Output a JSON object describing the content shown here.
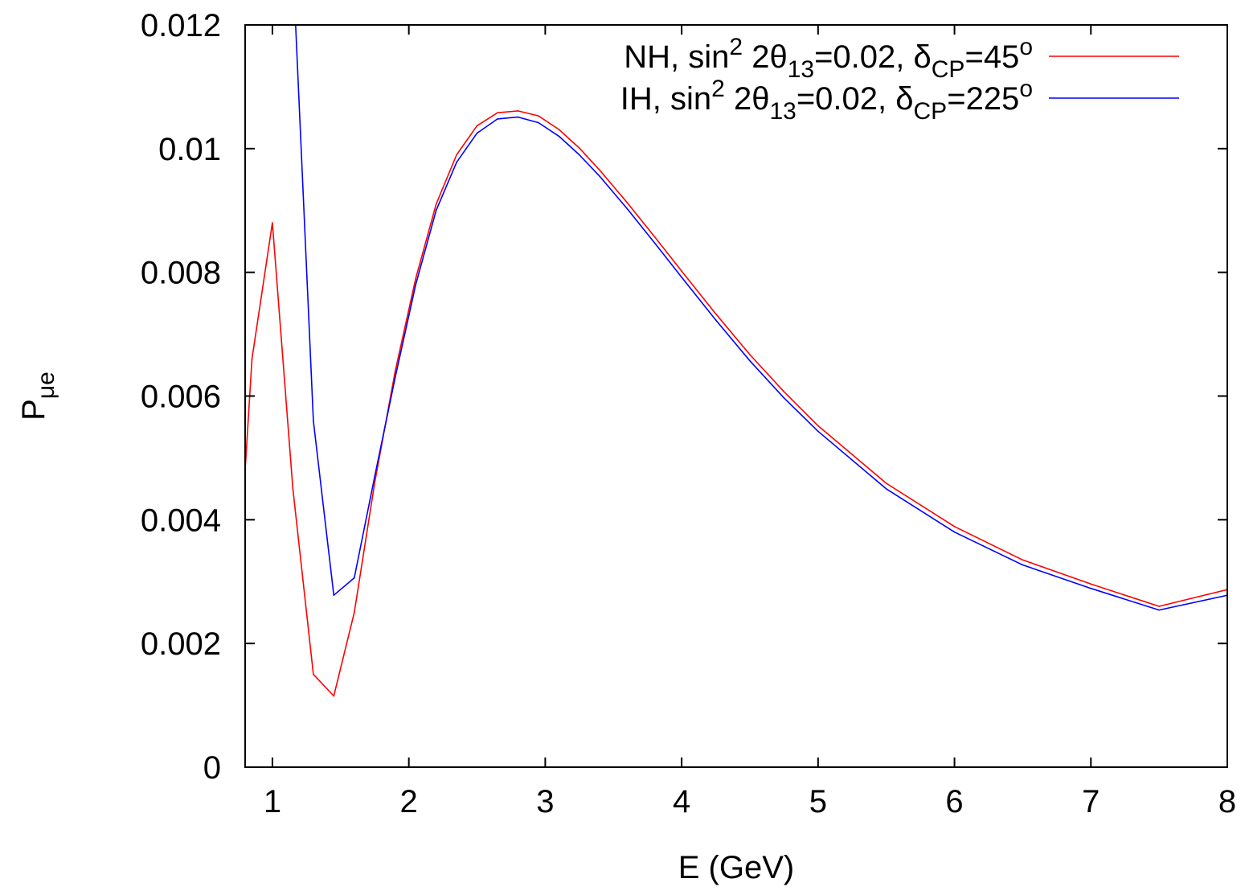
{
  "chart_data": {
    "type": "line",
    "title": "",
    "xlabel": "E (GeV)",
    "ylabel": {
      "main": "P",
      "sub": "μe"
    },
    "xlim": [
      0.8,
      8
    ],
    "ylim": [
      0,
      0.012
    ],
    "xticks": [
      1,
      2,
      3,
      4,
      5,
      6,
      7,
      8
    ],
    "xtick_labels": [
      "1",
      "2",
      "3",
      "4",
      "5",
      "6",
      "7",
      "8"
    ],
    "yticks": [
      0,
      0.002,
      0.004,
      0.006,
      0.008,
      0.01,
      0.012
    ],
    "ytick_labels": [
      "0",
      "0.002",
      "0.004",
      "0.006",
      "0.008",
      "0.01",
      "0.012"
    ],
    "grid": false,
    "legend_position": "top-right",
    "series": [
      {
        "name": "NH, sin² 2θ₁₃=0.02, δCP=45°",
        "legend_parts": {
          "a": "NH, sin",
          "sup1": "2",
          "b": " 2θ",
          "sub1": "13",
          "c": "=0.02, δ",
          "sub2": "CP",
          "d": "=45",
          "sup2": "o"
        },
        "color": "#ff0000",
        "x": [
          0.8,
          0.85,
          1.0,
          1.15,
          1.3,
          1.45,
          1.6,
          1.75,
          1.9,
          2.05,
          2.2,
          2.35,
          2.5,
          2.65,
          2.8,
          2.95,
          3.1,
          3.25,
          3.4,
          3.6,
          3.8,
          4.0,
          4.25,
          4.5,
          4.75,
          5.0,
          5.5,
          6.0,
          6.5,
          7.0,
          7.5,
          8.0
        ],
        "y": [
          0.0048,
          0.0066,
          0.0088,
          0.0045,
          0.0015,
          0.00115,
          0.0025,
          0.0046,
          0.0064,
          0.0079,
          0.0091,
          0.0099,
          0.01037,
          0.01058,
          0.01061,
          0.01053,
          0.01031,
          0.01001,
          0.00965,
          0.00913,
          0.00858,
          0.00802,
          0.00733,
          0.00667,
          0.00607,
          0.00552,
          0.00459,
          0.00389,
          0.00335,
          0.00296,
          0.0026,
          0.00287
        ]
      },
      {
        "name": "IH, sin² 2θ₁₃=0.02, δCP=225°",
        "legend_parts": {
          "a": "IH, sin",
          "sup1": "2",
          "b": " 2θ",
          "sub1": "13",
          "c": "=0.02, δ",
          "sub2": "CP",
          "d": "=225",
          "sup2": "o"
        },
        "color": "#0000ff",
        "x": [
          1.17,
          1.3,
          1.45,
          1.6,
          1.75,
          1.9,
          2.05,
          2.2,
          2.35,
          2.5,
          2.65,
          2.8,
          2.95,
          3.1,
          3.25,
          3.4,
          3.6,
          3.8,
          4.0,
          4.25,
          4.5,
          4.75,
          5.0,
          5.5,
          6.0,
          6.5,
          7.0,
          7.5,
          8.0
        ],
        "y": [
          0.012,
          0.0056,
          0.00278,
          0.00306,
          0.0047,
          0.0063,
          0.0078,
          0.009,
          0.00978,
          0.01025,
          0.01048,
          0.01051,
          0.01042,
          0.0102,
          0.0099,
          0.00955,
          0.00903,
          0.00848,
          0.00792,
          0.00723,
          0.00657,
          0.00597,
          0.00543,
          0.0045,
          0.0038,
          0.00327,
          0.00289,
          0.00254,
          0.00278
        ]
      }
    ]
  }
}
